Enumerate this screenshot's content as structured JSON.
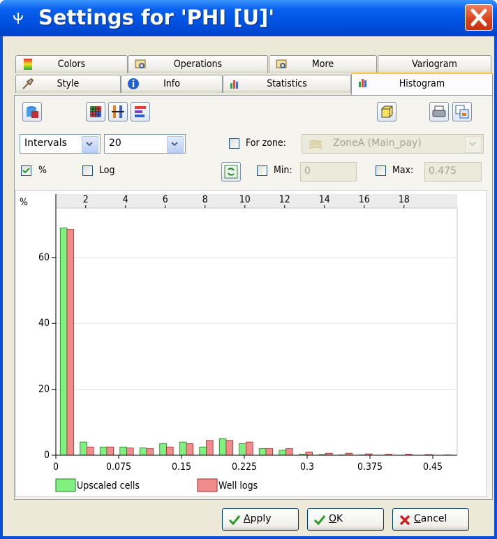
{
  "window": {
    "title": "Settings for 'PHI [U]'"
  },
  "tabs": {
    "row1": [
      "Colors",
      "Operations",
      "More",
      "Variogram"
    ],
    "row2": [
      "Style",
      "Info",
      "Statistics",
      "Histogram"
    ],
    "active": "Histogram"
  },
  "controls": {
    "interval_mode": "Intervals",
    "interval_count": "20",
    "for_zone": {
      "label": "For zone:",
      "checked": false
    },
    "zone": "ZoneA (Main_pay)",
    "percent": {
      "label": "%",
      "checked": true
    },
    "log": {
      "label": "Log",
      "checked": false
    },
    "min": {
      "label": "Min:",
      "checked": false,
      "value": "0"
    },
    "max": {
      "label": "Max:",
      "checked": false,
      "value": "0.475"
    }
  },
  "chart_data": {
    "type": "histogram",
    "y_label": "%",
    "bins": [
      0,
      0.02375,
      0.0475,
      0.07125,
      0.095,
      0.11875,
      0.1425,
      0.16625,
      0.19,
      0.21375,
      0.2375,
      0.26125,
      0.285,
      0.30875,
      0.3325,
      0.35625,
      0.38,
      0.40375,
      0.4275,
      0.45125,
      0.475
    ],
    "series": [
      {
        "name": "Upscaled cells",
        "color": "#80f080",
        "values": [
          69,
          4,
          2.5,
          2.5,
          2.2,
          3.5,
          4,
          2.5,
          5,
          3.5,
          2,
          1.5,
          0.3,
          0.2,
          0.1,
          0.1,
          0,
          0,
          0,
          0
        ]
      },
      {
        "name": "Well logs",
        "color": "#f08c8c",
        "values": [
          68.5,
          2.5,
          2.5,
          2.2,
          2,
          2.5,
          3.5,
          4.5,
          4.5,
          4,
          2,
          2,
          1,
          0.6,
          0.6,
          0.4,
          0.3,
          0.3,
          0.2,
          0.1
        ]
      }
    ],
    "xlim": [
      0,
      0.475
    ],
    "xticks": [
      0,
      0.075,
      0.15,
      0.225,
      0.3,
      0.375,
      0.45
    ],
    "x2lim": [
      0.5,
      20.5
    ],
    "x2ticks": [
      2,
      4,
      6,
      8,
      10,
      12,
      14,
      16,
      18
    ],
    "ylim": [
      0,
      75
    ],
    "yticks": [
      0,
      20,
      40,
      60
    ],
    "grid": true
  },
  "buttons": [
    "Apply",
    "OK",
    "Cancel"
  ]
}
